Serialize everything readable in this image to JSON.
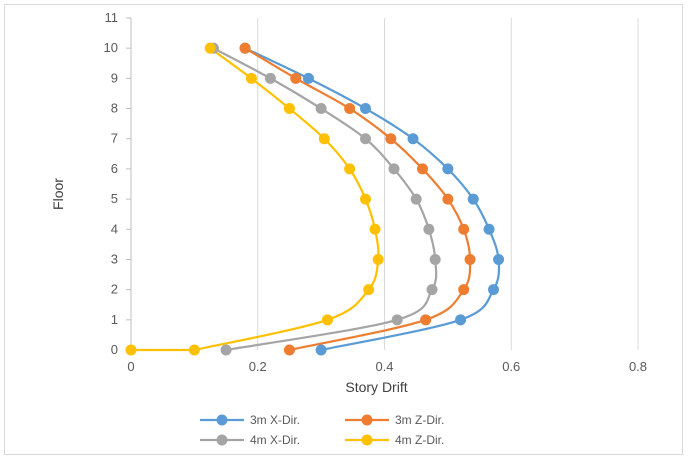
{
  "chart_data": {
    "type": "line",
    "title": "",
    "xlabel": "Story Drift",
    "ylabel": "Floor",
    "xlim": [
      0,
      0.8
    ],
    "ylim": [
      0,
      11
    ],
    "xticks": [
      0,
      0.2,
      0.4,
      0.6,
      0.8
    ],
    "xtick_labels": [
      "0",
      "0.2",
      "0.4",
      "0.6",
      "0.8"
    ],
    "yticks": [
      0,
      1,
      2,
      3,
      4,
      5,
      6,
      7,
      8,
      9,
      10,
      11
    ],
    "ytick_labels": [
      "0",
      "1",
      "2",
      "3",
      "4",
      "5",
      "6",
      "7",
      "8",
      "9",
      "10",
      "11"
    ],
    "grid": "vertical",
    "legend_position": "bottom",
    "y": [
      0,
      1,
      2,
      3,
      4,
      5,
      6,
      7,
      8,
      9,
      10
    ],
    "series": [
      {
        "name": "3m X-Dir.",
        "color": "#5B9BD5",
        "x": [
          0.3,
          0.52,
          0.572,
          0.58,
          0.565,
          0.54,
          0.5,
          0.445,
          0.37,
          0.28,
          0.18
        ]
      },
      {
        "name": "3m Z-Dir.",
        "color": "#ED7D31",
        "x": [
          0.25,
          0.465,
          0.525,
          0.535,
          0.525,
          0.5,
          0.46,
          0.41,
          0.345,
          0.26,
          0.18
        ]
      },
      {
        "name": "4m X-Dir.",
        "color": "#A5A5A5",
        "x": [
          0.15,
          0.42,
          0.475,
          0.48,
          0.47,
          0.45,
          0.415,
          0.37,
          0.3,
          0.22,
          0.13
        ]
      },
      {
        "name": "4m Z-Dir.",
        "color": "#FFC000",
        "x": [
          0.1,
          0.31,
          0.375,
          0.39,
          0.385,
          0.37,
          0.345,
          0.305,
          0.25,
          0.19,
          0.125
        ]
      }
    ],
    "extra_points": [
      {
        "series": "4m Z-Dir.",
        "x": 0,
        "y": 0
      }
    ]
  }
}
